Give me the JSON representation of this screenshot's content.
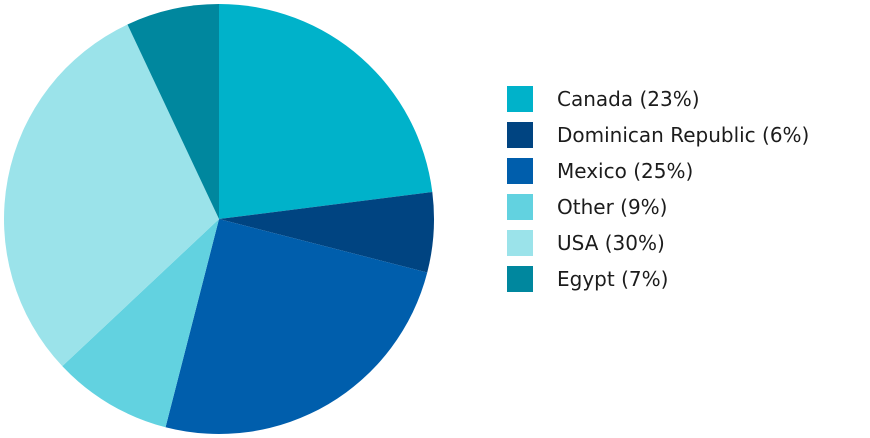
{
  "chart_data": {
    "type": "pie",
    "start_angle_deg": 0,
    "direction": "clockwise",
    "legend_position": "right",
    "slices": [
      {
        "label": "Canada (23%)",
        "value": 23,
        "color": "#00b2ca"
      },
      {
        "label": "Dominican Republic (6%)",
        "value": 6,
        "color": "#004481"
      },
      {
        "label": "Mexico (25%)",
        "value": 25,
        "color": "#005eac"
      },
      {
        "label": "Other (9%)",
        "value": 9,
        "color": "#62d2e0"
      },
      {
        "label": "USA (30%)",
        "value": 30,
        "color": "#9be3ea"
      },
      {
        "label": "Egypt (7%)",
        "value": 7,
        "color": "#00879e"
      }
    ]
  }
}
